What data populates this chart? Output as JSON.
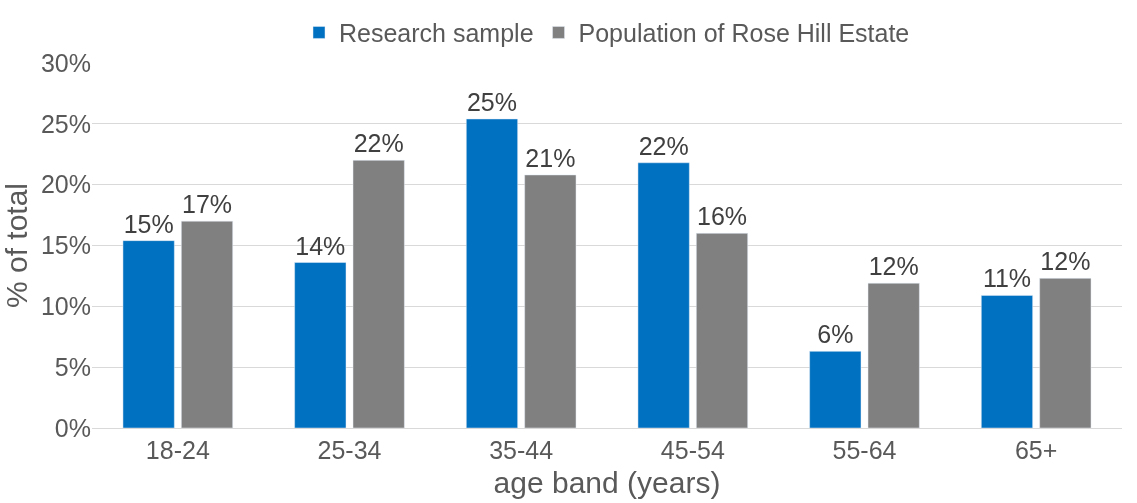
{
  "chart_data": {
    "type": "bar",
    "xlabel": "age band (years)",
    "ylabel": "% of total",
    "categories": [
      "18-24",
      "25-34",
      "35-44",
      "45-54",
      "55-64",
      "65+"
    ],
    "series": [
      {
        "name": "Research sample",
        "color": "#0070c0",
        "values": [
          15.4,
          13.6,
          25.4,
          21.8,
          6.3,
          10.9
        ],
        "value_labels": [
          "15%",
          "14%",
          "25%",
          "22%",
          "6%",
          "11%"
        ]
      },
      {
        "name": "Population of Rose Hill Estate",
        "color": "#808080",
        "values": [
          17.0,
          22.0,
          20.8,
          16.0,
          11.9,
          12.3
        ],
        "value_labels": [
          "17%",
          "22%",
          "21%",
          "16%",
          "12%",
          "12%"
        ]
      }
    ],
    "ylim": [
      0,
      30
    ],
    "yticks": [
      {
        "value": 0,
        "label": "0%"
      },
      {
        "value": 5,
        "label": "5%"
      },
      {
        "value": 10,
        "label": "10%"
      },
      {
        "value": 15,
        "label": "15%"
      },
      {
        "value": 20,
        "label": "20%"
      },
      {
        "value": 25,
        "label": "25%"
      },
      {
        "value": 30,
        "label": "30%"
      }
    ],
    "grid": "y",
    "legend": "top"
  }
}
